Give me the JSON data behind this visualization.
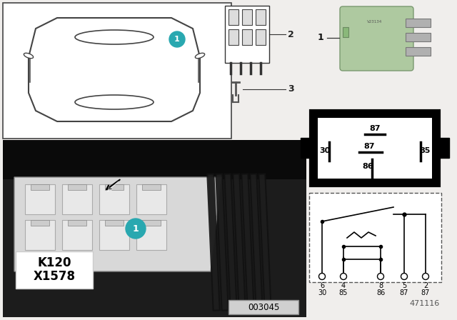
{
  "bg_color": "#f0eeec",
  "white": "#ffffff",
  "black": "#000000",
  "teal": "#29a8b0",
  "green_relay": "#aec9a0",
  "gray_light": "#cccccc",
  "gray_dark": "#555555",
  "photo_bg": "#2a2a2a",
  "photo_box_color": "#c8c8c8",
  "connector_pins_top": "87",
  "connector_pins_mid_l": "30",
  "connector_pins_mid_c": "87",
  "connector_pins_mid_r": "85",
  "connector_pins_bot": "86",
  "term_labels1": [
    "6",
    "4",
    "8",
    "5",
    "2"
  ],
  "term_labels2": [
    "30",
    "85",
    "86",
    "87",
    "87"
  ],
  "diagram_number": "471116",
  "photo_label": "003045",
  "k_label": "K120",
  "x_label": "X1578",
  "callout1_label": "1",
  "callout2_label": "2",
  "callout3_label": "3"
}
